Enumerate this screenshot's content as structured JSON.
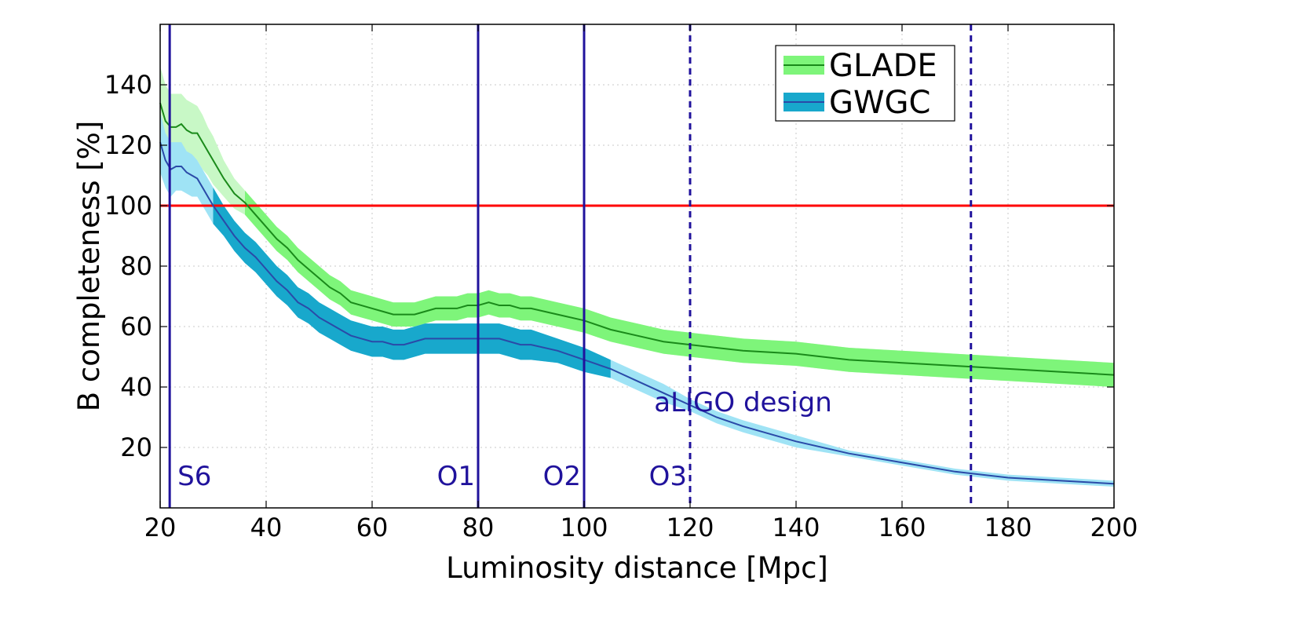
{
  "chart_data": {
    "type": "line",
    "title": "",
    "xlabel": "Luminosity distance [Mpc]",
    "ylabel": "B completeness [%]",
    "xlim": [
      20,
      200
    ],
    "ylim": [
      0,
      160
    ],
    "xticks": [
      20,
      40,
      60,
      80,
      100,
      120,
      140,
      160,
      180,
      200
    ],
    "yticks": [
      20,
      40,
      60,
      80,
      100,
      120,
      140
    ],
    "xtick_labels": [
      "20",
      "40",
      "60",
      "80",
      "100",
      "120",
      "140",
      "160",
      "180",
      "200"
    ],
    "ytick_labels": [
      "20",
      "40",
      "60",
      "80",
      "100",
      "120",
      "140"
    ],
    "grid": true,
    "legend_position": "top-right",
    "legend": [
      {
        "label": "GLADE",
        "line_color": "#1a8a1a",
        "band_color": "#7ef57a"
      },
      {
        "label": "GWGC",
        "line_color": "#2a4aa8",
        "band_color": "#18a8cc"
      }
    ],
    "reference_line": {
      "y": 100,
      "color": "#ff0000"
    },
    "series": [
      {
        "name": "GLADE",
        "color": "#1a8a1a",
        "band_color_light": "#c8f8c6",
        "band_color_dark": "#7ef57a",
        "band_dark_from_x": 36,
        "x": [
          20,
          21,
          22,
          23,
          24,
          25,
          26,
          27,
          28,
          29,
          30,
          32,
          34,
          36,
          38,
          40,
          42,
          44,
          46,
          48,
          50,
          52,
          54,
          56,
          58,
          60,
          62,
          64,
          66,
          68,
          70,
          72,
          74,
          76,
          78,
          80,
          82,
          84,
          86,
          88,
          90,
          95,
          100,
          105,
          110,
          115,
          120,
          125,
          130,
          140,
          150,
          160,
          170,
          180,
          190,
          200
        ],
        "values": [
          134,
          128,
          126,
          126,
          127,
          125,
          124,
          124,
          121,
          118,
          115,
          109,
          104,
          101,
          97,
          93,
          89,
          86,
          82,
          79,
          76,
          73,
          71,
          68,
          67,
          66,
          65,
          64,
          64,
          64,
          65,
          66,
          66,
          66,
          67,
          67,
          68,
          67,
          67,
          66,
          66,
          64,
          62,
          59,
          57,
          55,
          54,
          53,
          52,
          51,
          49,
          48,
          47,
          46,
          45,
          44
        ],
        "band_halfwidth": [
          12,
          12,
          11,
          11,
          10,
          10,
          10,
          9,
          9,
          8,
          8,
          6,
          5,
          4,
          4,
          4,
          4,
          4,
          4,
          4,
          4,
          4,
          4,
          4,
          4,
          4,
          4,
          4,
          4,
          4,
          4,
          4,
          4,
          4,
          4,
          4,
          4,
          4,
          4,
          4,
          4,
          4,
          4,
          4,
          4,
          4,
          4,
          4,
          4,
          4,
          4,
          4,
          4,
          4,
          4,
          4
        ]
      },
      {
        "name": "GWGC",
        "color": "#2a4aa8",
        "band_color_light": "#9fe3f5",
        "band_color_dark": "#18a8cc",
        "band_dark_from_x": 30,
        "band_dark_to_x": 101,
        "x": [
          20,
          21,
          22,
          23,
          24,
          25,
          26,
          27,
          28,
          29,
          30,
          32,
          34,
          36,
          38,
          40,
          42,
          44,
          46,
          48,
          50,
          52,
          54,
          56,
          58,
          60,
          62,
          64,
          66,
          68,
          70,
          72,
          74,
          76,
          78,
          80,
          82,
          84,
          86,
          88,
          90,
          95,
          100,
          105,
          110,
          115,
          120,
          125,
          130,
          140,
          150,
          160,
          170,
          180,
          190,
          200
        ],
        "values": [
          121,
          115,
          112,
          113,
          113,
          111,
          110,
          109,
          106,
          103,
          100,
          95,
          90,
          86,
          83,
          79,
          75,
          72,
          68,
          66,
          63,
          61,
          59,
          57,
          56,
          55,
          55,
          54,
          54,
          55,
          56,
          56,
          56,
          56,
          56,
          56,
          56,
          56,
          55,
          54,
          54,
          52,
          49,
          46,
          42,
          38,
          34,
          30,
          27,
          22,
          18,
          15,
          12,
          10,
          9,
          8
        ],
        "band_halfwidth": [
          10,
          9,
          9,
          8,
          8,
          7,
          7,
          6,
          6,
          6,
          6,
          5,
          5,
          5,
          5,
          5,
          5,
          5,
          5,
          5,
          5,
          5,
          5,
          5,
          5,
          5,
          5,
          5,
          5,
          5,
          5,
          5,
          5,
          5,
          5,
          5,
          5,
          5,
          5,
          5,
          5,
          4,
          4,
          3,
          3,
          3,
          2,
          2,
          2,
          2,
          1,
          1,
          1,
          1,
          1,
          1
        ]
      }
    ],
    "vertical_lines": [
      {
        "x": 21.8,
        "label": "S6",
        "style": "solid",
        "color": "#20129c"
      },
      {
        "x": 80,
        "label": "O1",
        "style": "solid",
        "color": "#20129c"
      },
      {
        "x": 100,
        "label": "O2",
        "style": "solid",
        "color": "#20129c"
      },
      {
        "x": 120,
        "label": "O3",
        "style": "dashed",
        "color": "#20129c"
      },
      {
        "x": 173,
        "label": "",
        "style": "dashed",
        "color": "#20129c"
      }
    ],
    "annotations": [
      {
        "text": "aLIGO design",
        "x": 130,
        "y": 32,
        "color": "#20129c"
      }
    ]
  }
}
